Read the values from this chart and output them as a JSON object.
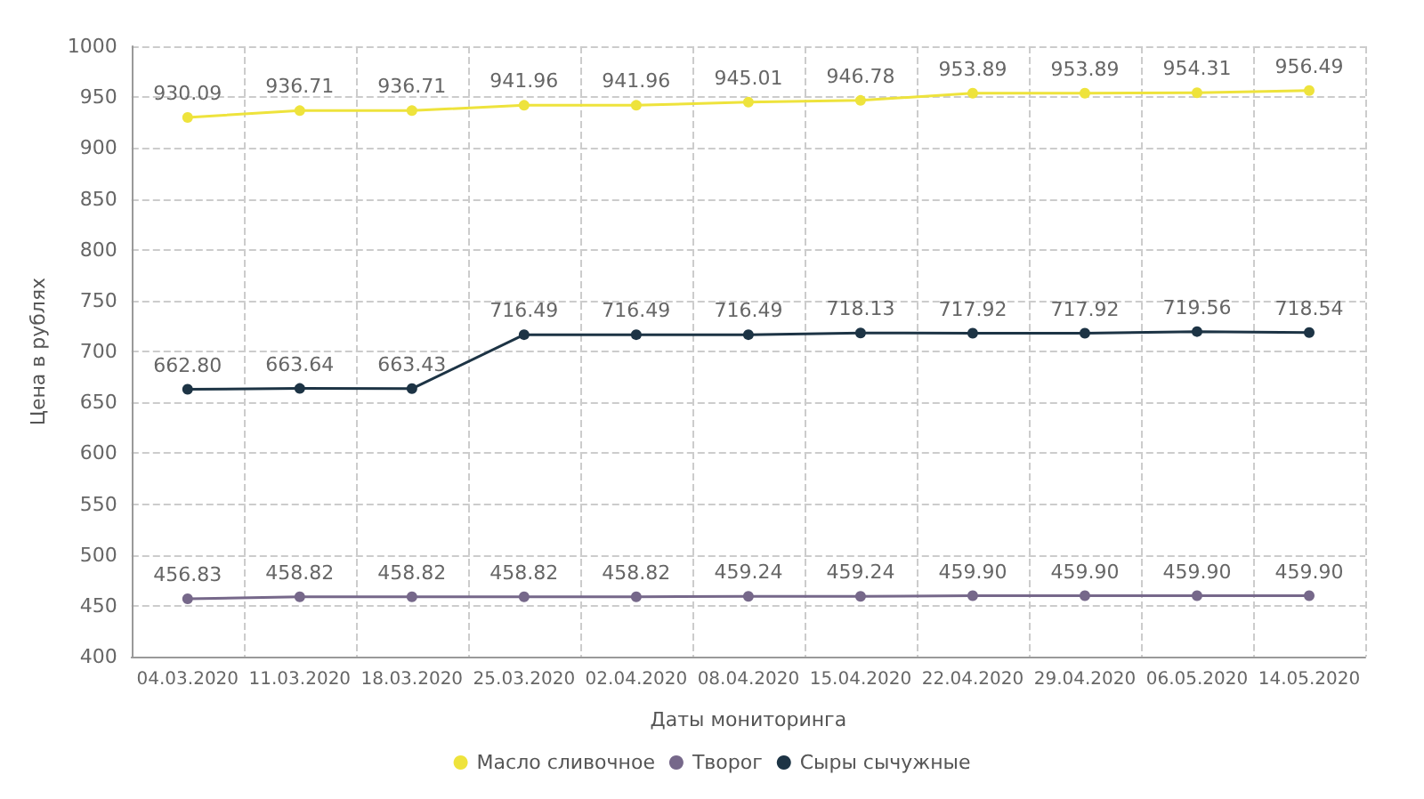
{
  "chart_data": {
    "type": "line",
    "xlabel": "Даты мониторинга",
    "ylabel": "Цена в рублях",
    "categories": [
      "04.03.2020",
      "11.03.2020",
      "18.03.2020",
      "25.03.2020",
      "02.04.2020",
      "08.04.2020",
      "15.04.2020",
      "22.04.2020",
      "29.04.2020",
      "06.05.2020",
      "14.05.2020"
    ],
    "series": [
      {
        "name": "Масло сливочное",
        "color": "#eee33c",
        "values": [
          930.09,
          936.71,
          936.71,
          941.96,
          941.96,
          945.01,
          946.78,
          953.89,
          953.89,
          954.31,
          956.49
        ],
        "value_labels": [
          "930.09",
          "936.71",
          "936.71",
          "941.96",
          "941.96",
          "945.01",
          "946.78",
          "953.89",
          "953.89",
          "954.31",
          "956.49"
        ]
      },
      {
        "name": "Творог",
        "color": "#76688a",
        "values": [
          456.83,
          458.82,
          458.82,
          458.82,
          458.82,
          459.24,
          459.24,
          459.9,
          459.9,
          459.9,
          459.9
        ],
        "value_labels": [
          "456.83",
          "458.82",
          "458.82",
          "458.82",
          "458.82",
          "459.24",
          "459.24",
          "459.90",
          "459.90",
          "459.90",
          "459.90"
        ]
      },
      {
        "name": "Сыры сычужные",
        "color": "#1d3445",
        "values": [
          662.8,
          663.64,
          663.43,
          716.49,
          716.49,
          716.49,
          718.13,
          717.92,
          717.92,
          719.56,
          718.54
        ],
        "value_labels": [
          "662.80",
          "663.64",
          "663.43",
          "716.49",
          "716.49",
          "716.49",
          "718.13",
          "717.92",
          "717.92",
          "719.56",
          "718.54"
        ]
      }
    ],
    "ylim": [
      400,
      1000
    ],
    "yticks": [
      400,
      450,
      500,
      550,
      600,
      650,
      700,
      750,
      800,
      850,
      900,
      950,
      1000
    ],
    "grid": true,
    "legend": "bottom",
    "marker": "circle",
    "line_style": "solid"
  }
}
